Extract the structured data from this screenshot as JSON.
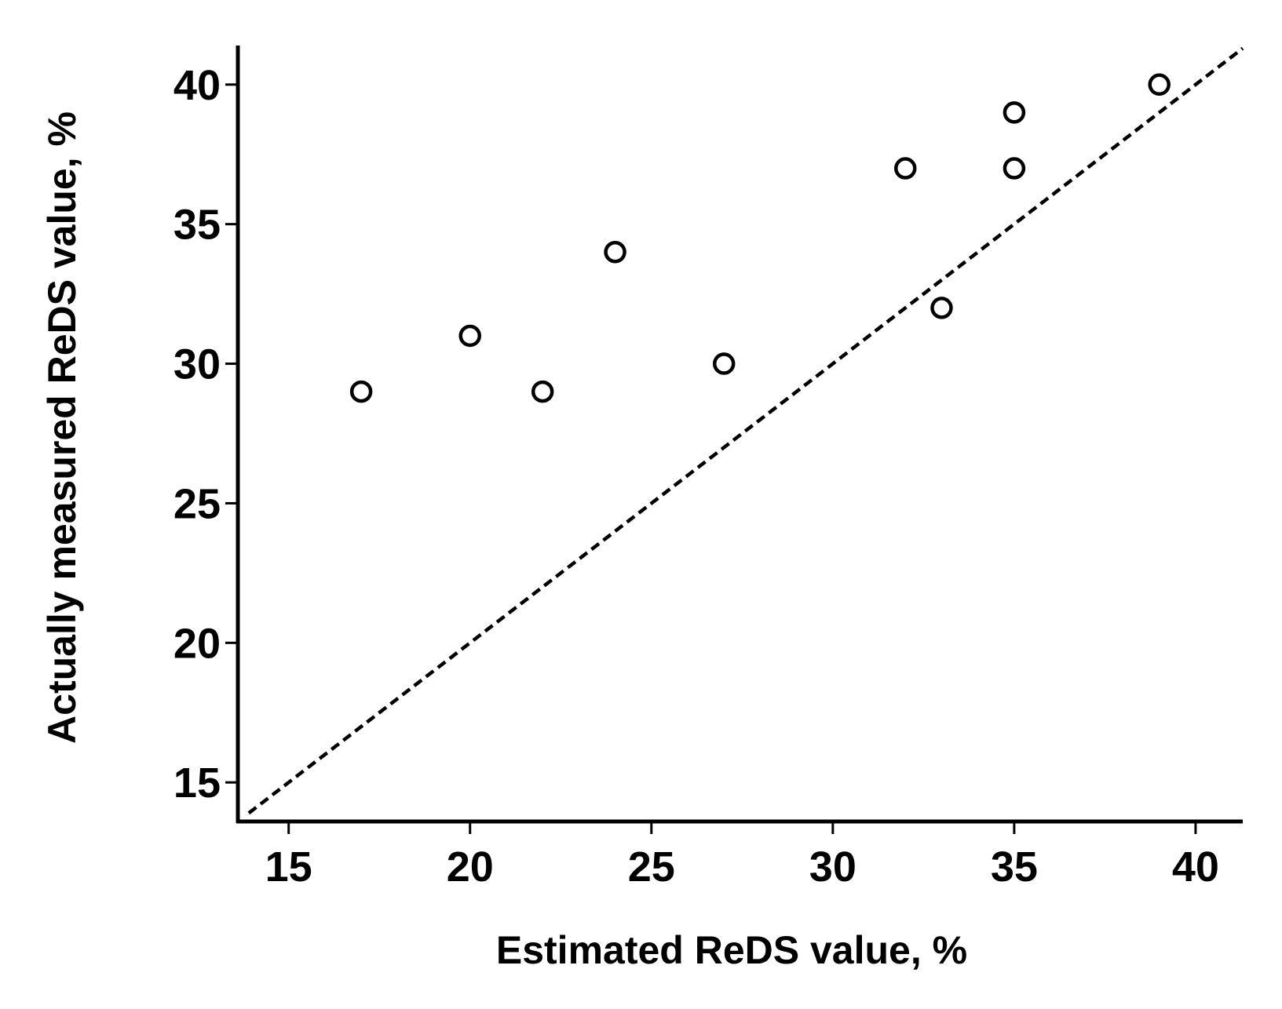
{
  "chart_data": {
    "type": "scatter",
    "title": "",
    "xlabel": "Estimated ReDS value, %",
    "ylabel": "Actually measured ReDS value, %",
    "xlim": [
      13.6,
      41.3
    ],
    "ylim": [
      13.6,
      41.4
    ],
    "x_ticks": [
      15,
      20,
      25,
      30,
      35,
      40
    ],
    "y_ticks": [
      15,
      20,
      25,
      30,
      35,
      40
    ],
    "x_tick_labels": [
      "15",
      "20",
      "25",
      "30",
      "35",
      "40"
    ],
    "y_tick_labels": [
      "15",
      "20",
      "25",
      "30",
      "35",
      "40"
    ],
    "grid": false,
    "legend": "none",
    "marker": "open-circle",
    "series": [
      {
        "points": [
          {
            "x": 17,
            "y": 29
          },
          {
            "x": 20,
            "y": 31
          },
          {
            "x": 22,
            "y": 29
          },
          {
            "x": 24,
            "y": 34
          },
          {
            "x": 27,
            "y": 30
          },
          {
            "x": 32,
            "y": 37
          },
          {
            "x": 33,
            "y": 32
          },
          {
            "x": 35,
            "y": 39
          },
          {
            "x": 35,
            "y": 37
          },
          {
            "x": 39,
            "y": 40
          }
        ]
      }
    ],
    "reference_line": {
      "style": "dashed",
      "from": {
        "x": 13.9,
        "y": 13.9
      },
      "to": {
        "x": 41.3,
        "y": 41.3
      }
    },
    "colors": {
      "axis": "#000000",
      "marker": "#000000",
      "reference_line": "#000000",
      "background": "#ffffff"
    }
  }
}
